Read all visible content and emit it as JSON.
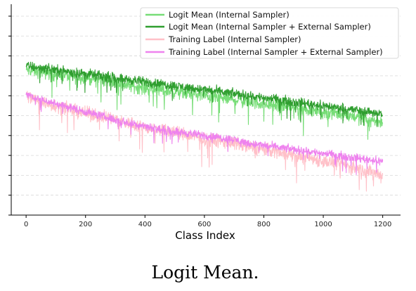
{
  "chart_data": {
    "type": "line",
    "title": "",
    "xlabel": "Class Index",
    "ylabel": "",
    "caption": "Logit Mean.",
    "xlim": [
      -50,
      1260
    ],
    "ylim": [
      0,
      1.06
    ],
    "x_ticks": [
      0,
      200,
      400,
      600,
      800,
      1000,
      1200
    ],
    "y_tick_values": [
      0.0,
      0.1,
      0.2,
      0.3,
      0.4,
      0.5,
      0.6,
      0.7,
      0.8,
      0.9,
      1.0
    ],
    "y_tick_labels_visible": false,
    "grid": "y-dashed",
    "legend_position": "top-right",
    "x": [
      0,
      50,
      100,
      150,
      200,
      250,
      300,
      350,
      400,
      450,
      500,
      550,
      600,
      650,
      700,
      750,
      800,
      850,
      900,
      950,
      1000,
      1050,
      1100,
      1150,
      1200
    ],
    "series": [
      {
        "name": "Logit Mean (Internal Sampler)",
        "color": "#77dd77",
        "values": [
          0.73,
          0.72,
          0.71,
          0.7,
          0.69,
          0.68,
          0.67,
          0.65,
          0.64,
          0.63,
          0.62,
          0.61,
          0.6,
          0.59,
          0.58,
          0.57,
          0.56,
          0.55,
          0.54,
          0.53,
          0.52,
          0.51,
          0.5,
          0.48,
          0.47
        ],
        "noise": 0.05
      },
      {
        "name": "Logit Mean (Internal Sampler + External Sampler)",
        "color": "#2f9e2f",
        "values": [
          0.75,
          0.74,
          0.73,
          0.72,
          0.71,
          0.7,
          0.69,
          0.68,
          0.67,
          0.66,
          0.65,
          0.64,
          0.63,
          0.62,
          0.61,
          0.6,
          0.59,
          0.58,
          0.57,
          0.56,
          0.55,
          0.54,
          0.53,
          0.52,
          0.51
        ],
        "noise": 0.035
      },
      {
        "name": "Training Label (Internal Sampler)",
        "color": "#ffc0c8",
        "values": [
          0.6,
          0.57,
          0.55,
          0.53,
          0.51,
          0.5,
          0.48,
          0.46,
          0.44,
          0.43,
          0.42,
          0.4,
          0.38,
          0.37,
          0.36,
          0.34,
          0.33,
          0.32,
          0.3,
          0.29,
          0.27,
          0.26,
          0.24,
          0.22,
          0.2
        ],
        "noise": 0.05
      },
      {
        "name": "Training Label (Internal Sampler + External Sampler)",
        "color": "#ee82ee",
        "values": [
          0.61,
          0.58,
          0.56,
          0.54,
          0.52,
          0.5,
          0.48,
          0.46,
          0.45,
          0.43,
          0.42,
          0.41,
          0.4,
          0.39,
          0.38,
          0.36,
          0.35,
          0.34,
          0.33,
          0.32,
          0.31,
          0.3,
          0.29,
          0.28,
          0.27
        ],
        "noise": 0.03
      }
    ]
  }
}
